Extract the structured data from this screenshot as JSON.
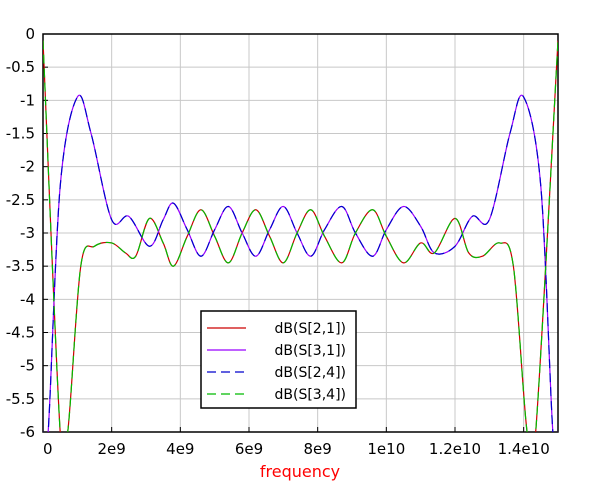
{
  "chart_data": {
    "type": "line",
    "xlabel": "frequency",
    "xlabel_color": "#ff0000",
    "ylabel": "",
    "xlim": [
      0,
      15000000000
    ],
    "ylim": [
      -6,
      0
    ],
    "grid": true,
    "legend_position": "bottom-center",
    "x_ticks": [
      {
        "value": 0,
        "label": "0"
      },
      {
        "value": 2000000000,
        "label": "2e9"
      },
      {
        "value": 4000000000,
        "label": "4e9"
      },
      {
        "value": 6000000000,
        "label": "6e9"
      },
      {
        "value": 8000000000,
        "label": "8e9"
      },
      {
        "value": 10000000000,
        "label": "1e10"
      },
      {
        "value": 12000000000,
        "label": "1.2e10"
      },
      {
        "value": 14000000000,
        "label": "1.4e10"
      }
    ],
    "y_ticks": [
      {
        "value": 0,
        "label": "0"
      },
      {
        "value": -0.5,
        "label": "-0.5"
      },
      {
        "value": -1,
        "label": "-1"
      },
      {
        "value": -1.5,
        "label": "-1.5"
      },
      {
        "value": -2,
        "label": "-2"
      },
      {
        "value": -2.5,
        "label": "-2.5"
      },
      {
        "value": -3,
        "label": "-3"
      },
      {
        "value": -3.5,
        "label": "-3.5"
      },
      {
        "value": -4,
        "label": "-4"
      },
      {
        "value": -4.5,
        "label": "-4.5"
      },
      {
        "value": -5,
        "label": "-5"
      },
      {
        "value": -5.5,
        "label": "-5.5"
      },
      {
        "value": -6,
        "label": "-6"
      }
    ],
    "series": [
      {
        "name": "dB(S[2,1])",
        "color": "#cc0000",
        "dash": "solid",
        "points": [
          [
            0,
            -0.1
          ],
          [
            500000000,
            -6.0
          ],
          [
            720000000,
            -6.0
          ],
          [
            1100000000,
            -3.5
          ],
          [
            1500000000,
            -3.2
          ],
          [
            2000000000,
            -3.15
          ],
          [
            2400000000,
            -3.3
          ],
          [
            2700000000,
            -3.35
          ],
          [
            3100000000,
            -2.78
          ],
          [
            3500000000,
            -3.15
          ],
          [
            3800000000,
            -3.5
          ],
          [
            4200000000,
            -3.05
          ],
          [
            4600000000,
            -2.65
          ],
          [
            5000000000,
            -3.05
          ],
          [
            5400000000,
            -3.45
          ],
          [
            5800000000,
            -3.0
          ],
          [
            6200000000,
            -2.65
          ],
          [
            6600000000,
            -3.05
          ],
          [
            7000000000,
            -3.45
          ],
          [
            7400000000,
            -3.0
          ],
          [
            7800000000,
            -2.65
          ],
          [
            8200000000,
            -3.05
          ],
          [
            8700000000,
            -3.45
          ],
          [
            9100000000,
            -3.0
          ],
          [
            9600000000,
            -2.65
          ],
          [
            10000000000,
            -3.05
          ],
          [
            10500000000,
            -3.45
          ],
          [
            11000000000,
            -3.15
          ],
          [
            11400000000,
            -3.3
          ],
          [
            12000000000,
            -2.78
          ],
          [
            12400000000,
            -3.3
          ],
          [
            12800000000,
            -3.35
          ],
          [
            13300000000,
            -3.15
          ],
          [
            13700000000,
            -3.5
          ],
          [
            14100000000,
            -6.0
          ],
          [
            14350000000,
            -6.0
          ],
          [
            15000000000,
            -0.1
          ]
        ]
      },
      {
        "name": "dB(S[3,1])",
        "color": "#9900ff",
        "dash": "solid",
        "points": [
          [
            0,
            -6.0
          ],
          [
            150000000,
            -6.0
          ],
          [
            500000000,
            -2.3
          ],
          [
            1000000000,
            -0.95
          ],
          [
            1400000000,
            -1.5
          ],
          [
            2000000000,
            -2.8
          ],
          [
            2500000000,
            -2.75
          ],
          [
            3100000000,
            -3.2
          ],
          [
            3500000000,
            -2.8
          ],
          [
            3800000000,
            -2.55
          ],
          [
            4200000000,
            -2.95
          ],
          [
            4600000000,
            -3.35
          ],
          [
            5000000000,
            -2.95
          ],
          [
            5400000000,
            -2.6
          ],
          [
            5800000000,
            -3.0
          ],
          [
            6200000000,
            -3.35
          ],
          [
            6600000000,
            -2.95
          ],
          [
            7000000000,
            -2.6
          ],
          [
            7400000000,
            -3.0
          ],
          [
            7800000000,
            -3.35
          ],
          [
            8200000000,
            -2.95
          ],
          [
            8700000000,
            -2.6
          ],
          [
            9100000000,
            -3.0
          ],
          [
            9600000000,
            -3.35
          ],
          [
            10000000000,
            -2.95
          ],
          [
            10500000000,
            -2.6
          ],
          [
            11000000000,
            -2.9
          ],
          [
            11400000000,
            -3.3
          ],
          [
            12000000000,
            -3.2
          ],
          [
            12500000000,
            -2.75
          ],
          [
            13000000000,
            -2.8
          ],
          [
            13600000000,
            -1.5
          ],
          [
            14000000000,
            -0.95
          ],
          [
            14500000000,
            -2.3
          ],
          [
            14850000000,
            -6.0
          ],
          [
            15000000000,
            -6.0
          ]
        ]
      },
      {
        "name": "dB(S[2,4])",
        "color": "#0000cc",
        "dash": "dashed",
        "points": [
          [
            0,
            -6.0
          ],
          [
            150000000,
            -6.0
          ],
          [
            500000000,
            -2.3
          ],
          [
            1000000000,
            -0.95
          ],
          [
            1400000000,
            -1.5
          ],
          [
            2000000000,
            -2.8
          ],
          [
            2500000000,
            -2.75
          ],
          [
            3100000000,
            -3.2
          ],
          [
            3500000000,
            -2.8
          ],
          [
            3800000000,
            -2.55
          ],
          [
            4200000000,
            -2.95
          ],
          [
            4600000000,
            -3.35
          ],
          [
            5000000000,
            -2.95
          ],
          [
            5400000000,
            -2.6
          ],
          [
            5800000000,
            -3.0
          ],
          [
            6200000000,
            -3.35
          ],
          [
            6600000000,
            -2.95
          ],
          [
            7000000000,
            -2.6
          ],
          [
            7400000000,
            -3.0
          ],
          [
            7800000000,
            -3.35
          ],
          [
            8200000000,
            -2.95
          ],
          [
            8700000000,
            -2.6
          ],
          [
            9100000000,
            -3.0
          ],
          [
            9600000000,
            -3.35
          ],
          [
            10000000000,
            -2.95
          ],
          [
            10500000000,
            -2.6
          ],
          [
            11000000000,
            -2.9
          ],
          [
            11400000000,
            -3.3
          ],
          [
            12000000000,
            -3.2
          ],
          [
            12500000000,
            -2.75
          ],
          [
            13000000000,
            -2.8
          ],
          [
            13600000000,
            -1.5
          ],
          [
            14000000000,
            -0.95
          ],
          [
            14500000000,
            -2.3
          ],
          [
            14850000000,
            -6.0
          ],
          [
            15000000000,
            -6.0
          ]
        ]
      },
      {
        "name": "dB(S[3,4])",
        "color": "#00bb00",
        "dash": "dashed",
        "points": [
          [
            0,
            -0.1
          ],
          [
            500000000,
            -6.0
          ],
          [
            720000000,
            -6.0
          ],
          [
            1100000000,
            -3.5
          ],
          [
            1500000000,
            -3.2
          ],
          [
            2000000000,
            -3.15
          ],
          [
            2400000000,
            -3.3
          ],
          [
            2700000000,
            -3.35
          ],
          [
            3100000000,
            -2.78
          ],
          [
            3500000000,
            -3.15
          ],
          [
            3800000000,
            -3.5
          ],
          [
            4200000000,
            -3.05
          ],
          [
            4600000000,
            -2.65
          ],
          [
            5000000000,
            -3.05
          ],
          [
            5400000000,
            -3.45
          ],
          [
            5800000000,
            -3.0
          ],
          [
            6200000000,
            -2.65
          ],
          [
            6600000000,
            -3.05
          ],
          [
            7000000000,
            -3.45
          ],
          [
            7400000000,
            -3.0
          ],
          [
            7800000000,
            -2.65
          ],
          [
            8200000000,
            -3.05
          ],
          [
            8700000000,
            -3.45
          ],
          [
            9100000000,
            -3.0
          ],
          [
            9600000000,
            -2.65
          ],
          [
            10000000000,
            -3.05
          ],
          [
            10500000000,
            -3.45
          ],
          [
            11000000000,
            -3.15
          ],
          [
            11400000000,
            -3.3
          ],
          [
            12000000000,
            -2.78
          ],
          [
            12400000000,
            -3.3
          ],
          [
            12800000000,
            -3.35
          ],
          [
            13300000000,
            -3.15
          ],
          [
            13700000000,
            -3.5
          ],
          [
            14100000000,
            -6.0
          ],
          [
            14350000000,
            -6.0
          ],
          [
            15000000000,
            -0.1
          ]
        ]
      }
    ]
  }
}
